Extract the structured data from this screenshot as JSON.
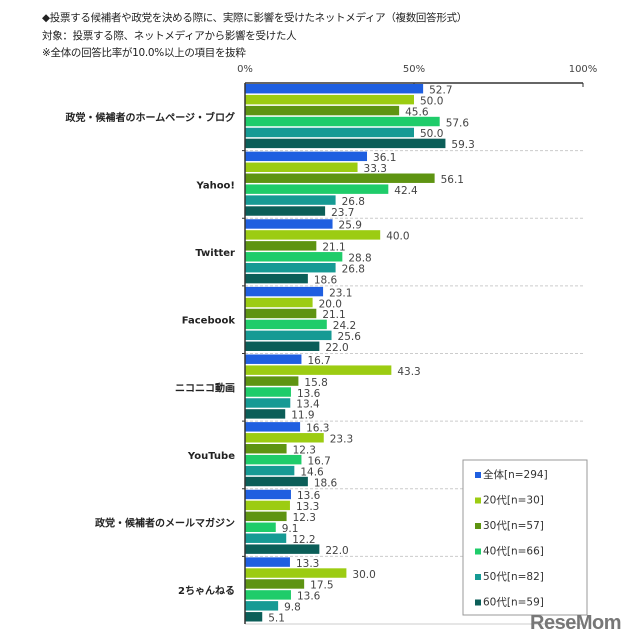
{
  "header": {
    "title": "◆投票する候補者や政党を決める際に、実際に影響を受けたネットメディア（複数回答形式）",
    "target": "対象：投票する際、ネットメディアから影響を受けた人",
    "note": "※全体の回答比率が10.0%以上の項目を抜粋"
  },
  "logo": "ReseMom",
  "chart_data": {
    "type": "bar",
    "orientation": "horizontal",
    "xlim": [
      0,
      100
    ],
    "xticks": [
      "0%",
      "50%",
      "100%"
    ],
    "grid": true,
    "legend_position": "bottom-right",
    "categories": [
      "政党・候補者のホームページ・ブログ",
      "Yahoo!",
      "Twitter",
      "Facebook",
      "ニコニコ動画",
      "YouTube",
      "政党・候補者のメールマガジン",
      "2ちゃんねる"
    ],
    "series": [
      {
        "name": "全体[n=294]",
        "color": "#1f5fe0",
        "values": [
          52.7,
          36.1,
          25.9,
          23.1,
          16.7,
          16.3,
          13.6,
          13.3
        ]
      },
      {
        "name": "20代[n=30]",
        "color": "#9ccc12",
        "values": [
          50.0,
          33.3,
          40.0,
          20.0,
          43.3,
          23.3,
          13.3,
          30.0
        ]
      },
      {
        "name": "30代[n=57]",
        "color": "#5e9412",
        "values": [
          45.6,
          56.1,
          21.1,
          21.1,
          15.8,
          12.3,
          12.3,
          17.5
        ]
      },
      {
        "name": "40代[n=66]",
        "color": "#1fcc6a",
        "values": [
          57.6,
          42.4,
          28.8,
          24.2,
          13.6,
          16.7,
          9.1,
          13.6
        ]
      },
      {
        "name": "50代[n=82]",
        "color": "#169a94",
        "values": [
          50.0,
          26.8,
          26.8,
          25.6,
          13.4,
          14.6,
          12.2,
          9.8
        ]
      },
      {
        "name": "60代[n=59]",
        "color": "#0b5e58",
        "values": [
          59.3,
          23.7,
          18.6,
          22.0,
          11.9,
          18.6,
          22.0,
          5.1
        ]
      }
    ]
  }
}
